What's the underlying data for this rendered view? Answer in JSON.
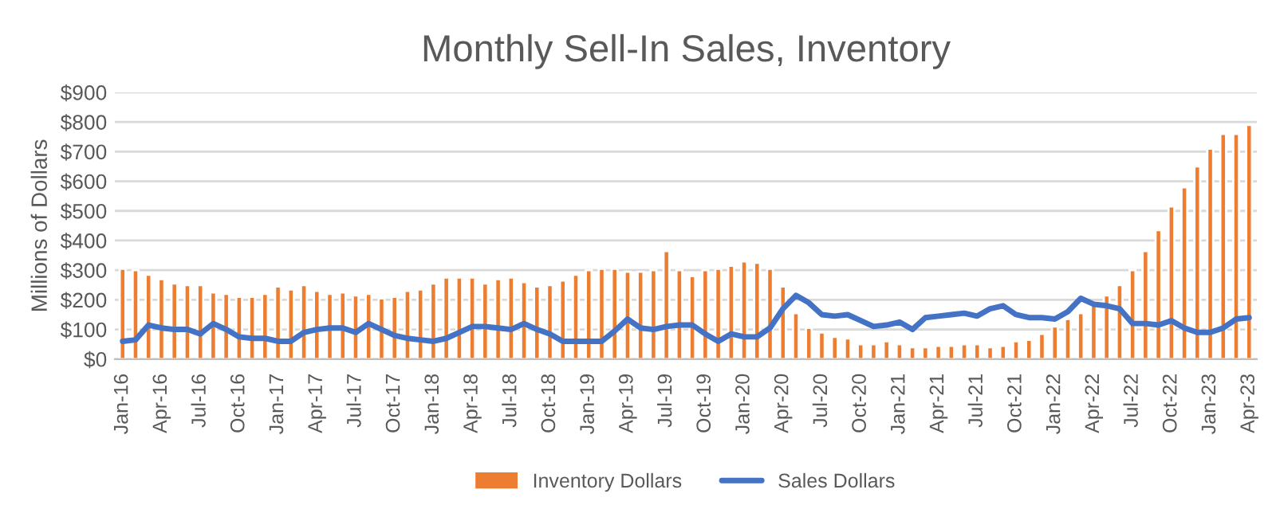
{
  "chart_data": {
    "type": "bar",
    "title": "Monthly Sell-In Sales, Inventory",
    "ylabel": "Millions of Dollars",
    "categories": [
      "Jan-16",
      null,
      null,
      "Apr-16",
      null,
      null,
      "Jul-16",
      null,
      null,
      "Oct-16",
      null,
      null,
      "Jan-17",
      null,
      null,
      "Apr-17",
      null,
      null,
      "Jul-17",
      null,
      null,
      "Oct-17",
      null,
      null,
      "Jan-18",
      null,
      null,
      "Apr-18",
      null,
      null,
      "Jul-18",
      null,
      null,
      "Oct-18",
      null,
      null,
      "Jan-19",
      null,
      null,
      "Apr-19",
      null,
      null,
      "Jul-19",
      null,
      null,
      "Oct-19",
      null,
      null,
      "Jan-20",
      null,
      null,
      "Apr-20",
      null,
      null,
      "Jul-20",
      null,
      null,
      "Oct-20",
      null,
      null,
      "Jan-21",
      null,
      null,
      "Apr-21",
      null,
      null,
      "Jul-21",
      null,
      null,
      "Oct-21",
      null,
      null,
      "Jan-22",
      null,
      null,
      "Apr-22",
      null,
      null,
      "Jul-22",
      null,
      null,
      "Oct-22",
      null,
      null,
      "Jan-23",
      null,
      null,
      "Apr-23"
    ],
    "series": [
      {
        "name": "Inventory Dollars",
        "color": "#ed7d31",
        "values": [
          305,
          300,
          285,
          270,
          255,
          250,
          250,
          225,
          220,
          210,
          210,
          220,
          245,
          235,
          250,
          230,
          220,
          225,
          215,
          220,
          205,
          210,
          230,
          235,
          255,
          275,
          275,
          275,
          255,
          270,
          275,
          260,
          245,
          250,
          265,
          285,
          300,
          305,
          305,
          295,
          295,
          300,
          365,
          300,
          280,
          300,
          305,
          315,
          330,
          325,
          305,
          245,
          155,
          105,
          90,
          75,
          70,
          50,
          50,
          60,
          50,
          40,
          40,
          45,
          45,
          50,
          50,
          40,
          45,
          60,
          65,
          85,
          110,
          135,
          155,
          185,
          215,
          250,
          300,
          365,
          435,
          515,
          580,
          650,
          710,
          760,
          760,
          790
        ]
      },
      {
        "name": "Sales Dollars",
        "type": "line",
        "color": "#4472c4",
        "values": [
          60,
          65,
          115,
          105,
          100,
          100,
          85,
          120,
          100,
          75,
          70,
          70,
          60,
          60,
          90,
          100,
          105,
          105,
          90,
          120,
          100,
          80,
          70,
          65,
          60,
          70,
          90,
          110,
          110,
          105,
          100,
          120,
          100,
          85,
          60,
          60,
          60,
          60,
          95,
          135,
          105,
          100,
          110,
          115,
          115,
          85,
          60,
          85,
          75,
          75,
          105,
          170,
          215,
          190,
          150,
          145,
          150,
          130,
          110,
          115,
          125,
          100,
          140,
          145,
          150,
          155,
          145,
          170,
          180,
          150,
          140,
          140,
          135,
          160,
          205,
          185,
          180,
          170,
          120,
          120,
          115,
          130,
          105,
          90,
          90,
          105,
          135,
          140
        ]
      }
    ],
    "ylim": [
      0,
      900
    ],
    "yticks": [
      {
        "value": 0,
        "label": "$0"
      },
      {
        "value": 100,
        "label": "$100"
      },
      {
        "value": 200,
        "label": "$200"
      },
      {
        "value": 300,
        "label": "$300"
      },
      {
        "value": 400,
        "label": "$400"
      },
      {
        "value": 500,
        "label": "$500"
      },
      {
        "value": 600,
        "label": "$600"
      },
      {
        "value": 700,
        "label": "$700"
      },
      {
        "value": 800,
        "label": "$800"
      },
      {
        "value": 900,
        "label": "$900"
      }
    ],
    "grid": "y",
    "legend": "bottom",
    "marker": "none",
    "line_style": "solid"
  }
}
